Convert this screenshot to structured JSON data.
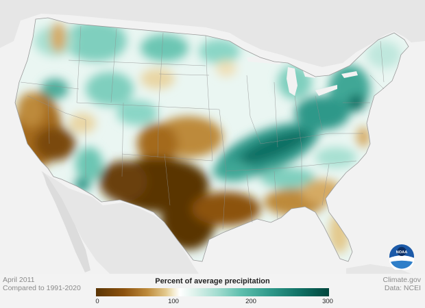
{
  "map": {
    "title": "Percent of average precipitation",
    "period": "April 2011",
    "baseline": "Compared to 1991-2020",
    "source_site": "Climate.gov",
    "source_data": "Data: NCEI",
    "legend": {
      "ticks": [
        "0",
        "100",
        "200",
        "300"
      ],
      "range": [
        0,
        300
      ],
      "colors": {
        "very_dry": "#5a3505",
        "dry": "#bd8a3b",
        "near_normal": "#ffffff",
        "wet": "#5fbfae",
        "very_wet": "#01463d"
      }
    },
    "logo_text": "NOAA"
  }
}
